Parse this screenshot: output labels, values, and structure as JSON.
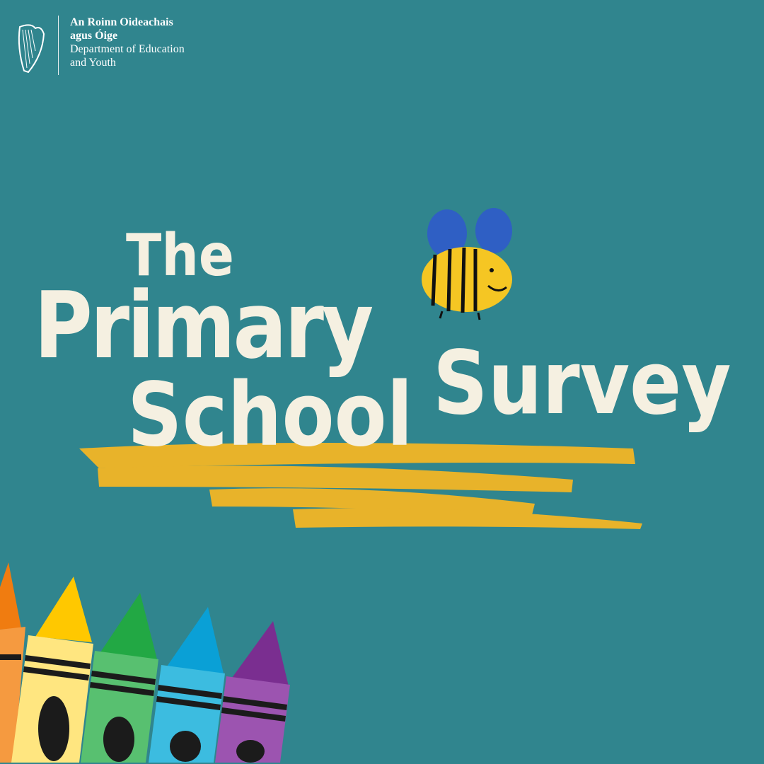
{
  "logo": {
    "line1": "An Roinn Oideachais",
    "line2": "agus Óige",
    "line3": "Department of Education",
    "line4": "and Youth"
  },
  "title": {
    "word1": "The",
    "word2": "Primary",
    "word3": "School",
    "word4": "Survey"
  },
  "colors": {
    "background": "#30858e",
    "text": "#f5f0e1",
    "scribble": "#e8b32a",
    "crayons": [
      "#f07c10",
      "#ffc800",
      "#22a844",
      "#0aa0d6",
      "#7a2e90"
    ]
  },
  "icons": [
    "harp-icon",
    "bee-icon",
    "crayons-illustration"
  ]
}
